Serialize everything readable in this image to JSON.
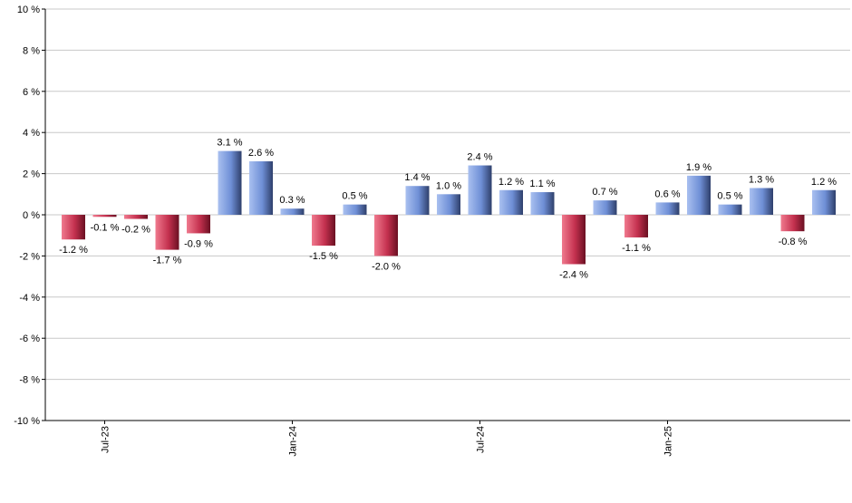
{
  "chart_data": {
    "type": "bar",
    "title": "",
    "xlabel": "",
    "ylabel": "",
    "ylim": [
      -10,
      10
    ],
    "y_ticks": [
      -10,
      -8,
      -6,
      -4,
      -2,
      0,
      2,
      4,
      6,
      8,
      10
    ],
    "y_tick_labels": [
      "-10 %",
      "-8 %",
      "-6 %",
      "-4 %",
      "-2 %",
      "0 %",
      "2 %",
      "4 %",
      "6 %",
      "8 %",
      "10 %"
    ],
    "grid": true,
    "legend": "none",
    "categories": [
      "2023-06",
      "2023-07",
      "2023-08",
      "2023-09",
      "2023-10",
      "2023-11",
      "2023-12",
      "2024-01",
      "2024-02",
      "2024-03",
      "2024-04",
      "2024-05",
      "2024-06",
      "2024-07",
      "2024-08",
      "2024-09",
      "2024-10",
      "2024-11",
      "2024-12",
      "2025-01",
      "2025-02",
      "2025-03",
      "2025-04",
      "2025-05",
      "2025-06"
    ],
    "values": [
      -1.2,
      -0.1,
      -0.2,
      -1.7,
      -0.9,
      3.1,
      2.6,
      0.3,
      -1.5,
      0.5,
      -2.0,
      1.4,
      1.0,
      2.4,
      1.2,
      1.1,
      -2.4,
      0.7,
      -1.1,
      0.6,
      1.9,
      0.5,
      1.3,
      -0.8,
      1.2
    ],
    "data_labels": [
      "-1.2 %",
      "-0.1 %",
      "-0.2 %",
      "-1.7 %",
      "-0.9 %",
      "3.1 %",
      "2.6 %",
      "0.3 %",
      "-1.5 %",
      "0.5 %",
      "-2.0 %",
      "1.4 %",
      "1.0 %",
      "2.4 %",
      "1.2 %",
      "1.1 %",
      "-2.4 %",
      "0.7 %",
      "-1.1 %",
      "0.6 %",
      "1.9 %",
      "0.5 %",
      "1.3 %",
      "-0.8 %",
      "1.2 %"
    ],
    "x_tick_labels": [
      {
        "label": "Jul-23",
        "category_index": 1
      },
      {
        "label": "Jan-24",
        "category_index": 7
      },
      {
        "label": "Jul-24",
        "category_index": 13
      },
      {
        "label": "Jan-25",
        "category_index": 19
      }
    ],
    "colors": {
      "positive": "#6f8fd6",
      "negative": "#c4314f",
      "grid": "#c8c8c8",
      "axis": "#000000"
    }
  }
}
